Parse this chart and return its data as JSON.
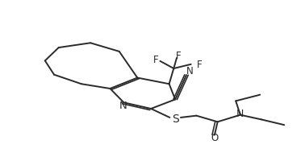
{
  "bg_color": "#ffffff",
  "line_color": "#2a2a2a",
  "line_width": 1.4,
  "font_size": 8.5,
  "fig_width": 3.78,
  "fig_height": 1.95,
  "dpi": 100,
  "xlim": [
    0,
    10
  ],
  "ylim": [
    0,
    10
  ]
}
